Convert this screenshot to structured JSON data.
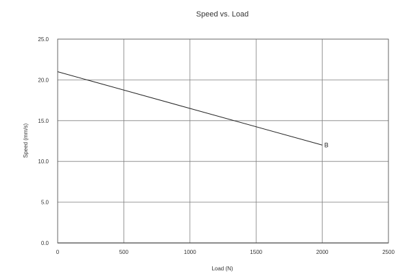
{
  "chart_data": {
    "type": "line",
    "title": "Speed vs. Load",
    "xlabel": "Load (N)",
    "ylabel": "Speed (mm/s)",
    "xlim": [
      0,
      2500
    ],
    "ylim": [
      0,
      25
    ],
    "xticks": [
      0,
      500,
      1000,
      1500,
      2000,
      2500
    ],
    "xtick_labels": [
      "0",
      "500",
      "1000",
      "1500",
      "2000",
      "2500"
    ],
    "yticks": [
      0,
      5,
      10,
      15,
      20,
      25
    ],
    "ytick_labels": [
      "0.0",
      "5.0",
      "10.0",
      "15.0",
      "20.0",
      "25.0"
    ],
    "grid": true,
    "series": [
      {
        "name": "B",
        "x": [
          0,
          1000,
          2000
        ],
        "y": [
          21.0,
          16.5,
          12.0
        ]
      }
    ]
  }
}
